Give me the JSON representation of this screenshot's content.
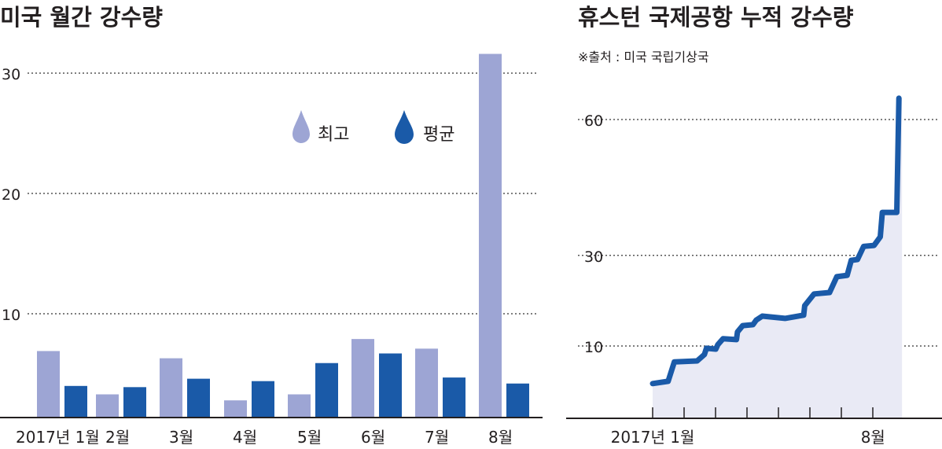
{
  "colors": {
    "max": "#9da5d4",
    "avg": "#1a5aa8",
    "fill": "#e9eaf5",
    "axis": "#231f20"
  },
  "chart_data": [
    {
      "type": "bar",
      "title": "미국 월간 강수량",
      "categories": [
        "2017년 1월",
        "2월",
        "3월",
        "4월",
        "5월",
        "6월",
        "7월",
        "8월"
      ],
      "series": [
        {
          "name": "최고",
          "values": [
            6.9,
            3.3,
            6.3,
            2.8,
            3.3,
            7.9,
            7.1,
            31.6
          ]
        },
        {
          "name": "평균",
          "values": [
            4.0,
            3.9,
            4.6,
            4.4,
            5.9,
            6.7,
            4.7,
            4.2
          ]
        }
      ],
      "yticks": [
        "10",
        "20",
        "30"
      ],
      "ytick_values": [
        10,
        20,
        30
      ],
      "grid": true,
      "legend": "top-center"
    },
    {
      "type": "area",
      "title": "휴스턴 국제공항 누적 강수량",
      "source": "※출처 : 미국 국립기상국",
      "x_unit": "days since 2017-01-01",
      "x": [
        0,
        15,
        21,
        43,
        50,
        52,
        61,
        63,
        68,
        81,
        82,
        87,
        97,
        100,
        106,
        128,
        146,
        147,
        156,
        171,
        178,
        188,
        192,
        198,
        204,
        214,
        220,
        222,
        236,
        238
      ],
      "y": [
        1.7,
        2.2,
        6.5,
        6.7,
        8.1,
        9.5,
        9.3,
        10.3,
        11.6,
        11.4,
        13.1,
        14.5,
        14.7,
        15.7,
        16.6,
        16.1,
        16.8,
        18.9,
        21.5,
        21.8,
        25.3,
        25.6,
        28.9,
        29.1,
        32.0,
        32.2,
        34.1,
        39.5,
        39.5,
        64.7
      ],
      "xtick_labels": [
        {
          "day": 0,
          "label": "2017년 1월"
        },
        {
          "day": 213,
          "label": "8월"
        }
      ],
      "yticks": [
        "10",
        "30",
        "60"
      ],
      "ytick_values": [
        10,
        30,
        60
      ],
      "grid": true
    }
  ]
}
